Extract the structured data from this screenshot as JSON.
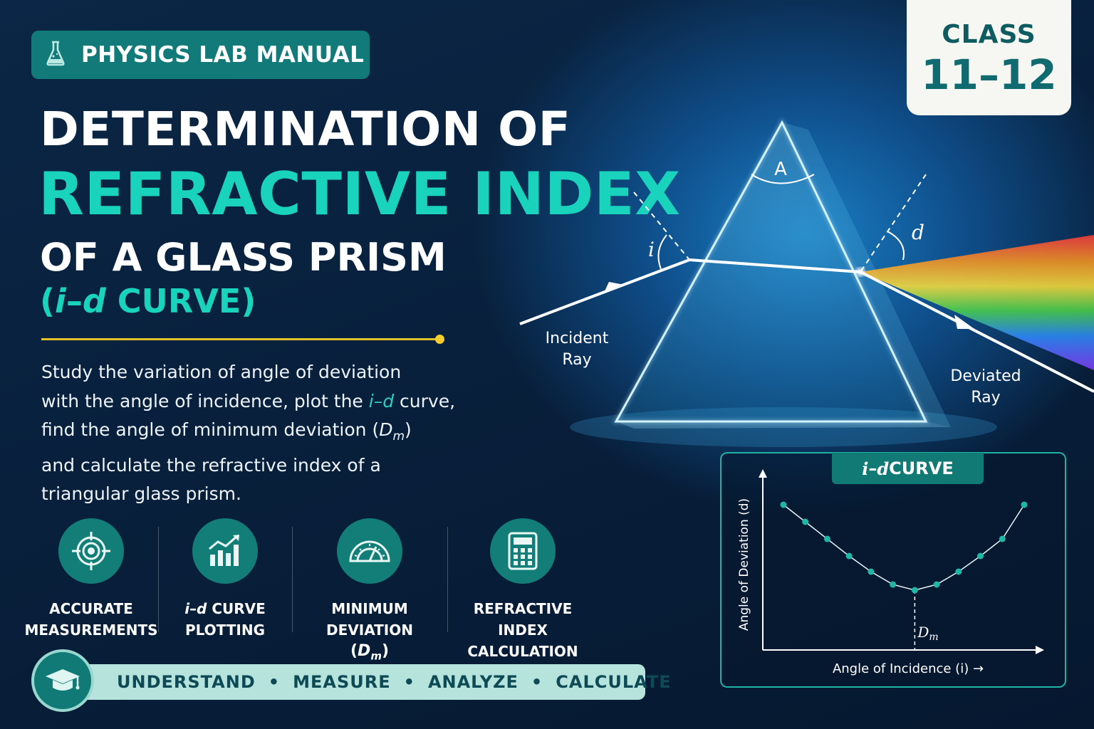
{
  "badge": {
    "label": "PHYSICS LAB MANUAL",
    "icon": "flask-icon"
  },
  "title": {
    "line1": "DETERMINATION OF",
    "line2": "REFRACTIVE INDEX",
    "line3": "OF A GLASS PRISM",
    "line4_open": "(",
    "line4_i": "i",
    "line4_dash": "–",
    "line4_d": "d",
    "line4_rest": " CURVE)"
  },
  "description": {
    "p1": "Study the variation of angle of deviation",
    "p2a": "with the angle of incidence, plot the ",
    "p2b": "i–d",
    "p2c": " curve,",
    "p3a": "find the angle of minimum deviation (",
    "p3b": "D",
    "p3c": "m",
    "p3d": ")",
    "p4": "and calculate the refractive index of a",
    "p5": "triangular glass prism."
  },
  "features": [
    {
      "icon": "target-icon",
      "line1": "ACCURATE",
      "line2": "MEASUREMENTS"
    },
    {
      "icon": "bar-chart-icon",
      "line1_i": "i",
      "line1_rest": "–",
      "line1_d": "d",
      "line1_tail": " CURVE",
      "line2": "PLOTTING"
    },
    {
      "icon": "protractor-icon",
      "line1": "MINIMUM DEVIATION",
      "line2_open": "(",
      "line2_D": "D",
      "line2_sub": "m",
      "line2_close": ")"
    },
    {
      "icon": "calculator-icon",
      "line1": "REFRACTIVE INDEX",
      "line2": "CALCULATION"
    }
  ],
  "banner": {
    "icon": "graduation-cap-icon",
    "items": [
      "UNDERSTAND",
      "MEASURE",
      "ANALYZE",
      "CALCULATE"
    ],
    "separator": "•"
  },
  "class_card": {
    "label": "CLASS",
    "value": "11–12"
  },
  "diagram": {
    "apex_label": "A",
    "incidence_label": "i",
    "deviation_label": "d",
    "incident_label_1": "Incident",
    "incident_label_2": "Ray",
    "deviated_label_1": "Deviated",
    "deviated_label_2": "Ray"
  },
  "curve": {
    "tag_i": "i",
    "tag_dash": "–",
    "tag_d": "d",
    "tag_rest": " CURVE",
    "ylabel": "Angle of Deviation (d)",
    "xlabel": "Angle of Incidence (i) →",
    "min_label_D": "D",
    "min_label_sub": "m",
    "points": [
      [
        0,
        0.98
      ],
      [
        1,
        0.86
      ],
      [
        2,
        0.74
      ],
      [
        3,
        0.62
      ],
      [
        4,
        0.51
      ],
      [
        5,
        0.42
      ],
      [
        6,
        0.38
      ],
      [
        7,
        0.42
      ],
      [
        8,
        0.51
      ],
      [
        9,
        0.62
      ],
      [
        10,
        0.74
      ],
      [
        11,
        0.98
      ]
    ]
  },
  "colors": {
    "accent": "#19d3bd",
    "badge": "#127a78",
    "gold": "#e2c12b",
    "card_text": "#0f5b62"
  }
}
